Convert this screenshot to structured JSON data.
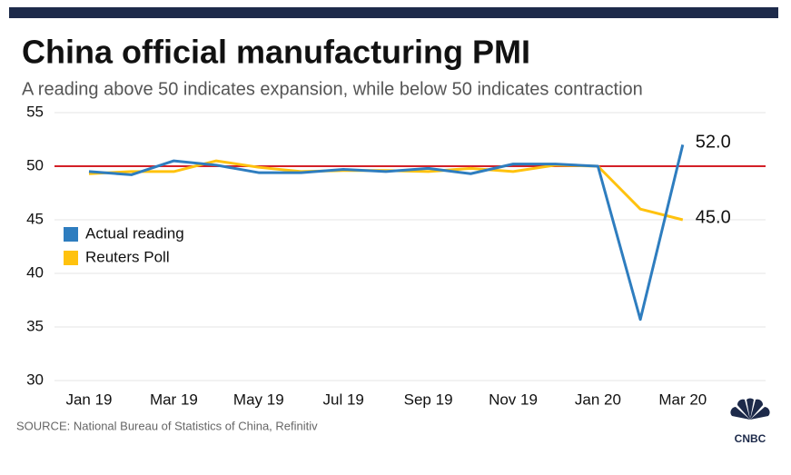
{
  "chart_data": {
    "type": "line",
    "title": "China official manufacturing PMI",
    "subtitle": "A reading above 50 indicates expansion, while below 50 indicates contraction",
    "source": "SOURCE: National Bureau of Statistics of China, Refinitiv",
    "logo": "CNBC",
    "categories": [
      "Jan 19",
      null,
      "Mar 19",
      null,
      "May 19",
      null,
      "Jul 19",
      null,
      "Sep 19",
      null,
      "Nov 19",
      null,
      "Jan 20",
      null,
      "Mar 20"
    ],
    "series": [
      {
        "name": "Actual reading",
        "color": "#2e7dbf",
        "values": [
          49.5,
          49.2,
          50.5,
          50.1,
          49.4,
          49.4,
          49.7,
          49.5,
          49.8,
          49.3,
          50.2,
          50.2,
          50.0,
          35.7,
          52.0
        ],
        "value_labels": [
          null,
          null,
          null,
          null,
          null,
          null,
          null,
          null,
          null,
          null,
          null,
          null,
          null,
          null,
          "52.0"
        ]
      },
      {
        "name": "Reuters Poll",
        "color": "#ffc20e",
        "values": [
          49.3,
          49.5,
          49.5,
          50.5,
          49.9,
          49.5,
          49.6,
          49.6,
          49.5,
          49.8,
          49.5,
          50.1,
          50.0,
          46.0,
          45.0
        ],
        "value_labels": [
          null,
          null,
          null,
          null,
          null,
          null,
          null,
          null,
          null,
          null,
          null,
          null,
          null,
          null,
          "45.0"
        ]
      }
    ],
    "reference_line": {
      "value": 50,
      "color": "#d42027"
    },
    "ylim": [
      30,
      55
    ],
    "yticks": [
      30,
      35,
      40,
      45,
      50,
      55
    ],
    "grid": true,
    "legend": "left"
  }
}
